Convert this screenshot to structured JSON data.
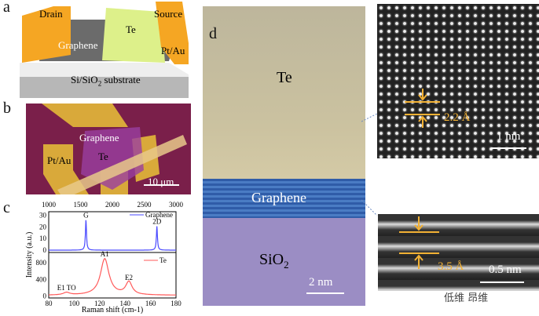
{
  "panels": {
    "a": "a",
    "b": "b",
    "c": "c",
    "d": "d"
  },
  "device": {
    "drain": "Drain",
    "source": "Source",
    "graphene": "Graphene",
    "te": "Te",
    "contact": "Pt/Au",
    "substrate": "Si/SiO",
    "substrate_sub": "2",
    "substrate_end": " substrate"
  },
  "micrograph": {
    "graphene": "Graphene",
    "te": "Te",
    "contact": "Pt/Au",
    "scale": "10 μm"
  },
  "tem": {
    "te": "Te",
    "graphene": "Graphene",
    "sio2": "SiO",
    "sio2_sub": "2",
    "scale": "2 nm"
  },
  "inset_top": {
    "spacing": "2.2 Å",
    "scale": "1 nm"
  },
  "inset_bottom": {
    "spacing": "3.5 Å",
    "scale": "0.5 nm"
  },
  "watermark": "低维 昂维",
  "colors": {
    "graphene": "#4a4aff",
    "te": "#ff5a5a",
    "accent": "#f2b134",
    "te_region": "#c9c09e",
    "graphene_region": "#3d6db5",
    "sio2_region": "#9b8dc4"
  },
  "chart_data": {
    "type": "line",
    "ylabel": "Intensity (a.u.)",
    "xlabel": "Raman shift (cm",
    "xlabel_sup": "-1",
    "xlabel_end": ")",
    "top": {
      "series": "Graphene",
      "xlim": [
        1000,
        3000
      ],
      "ylim": [
        -2,
        33
      ],
      "xticks": [
        "1000",
        "1500",
        "2000",
        "2500",
        "3000"
      ],
      "yticks": [
        "0",
        "10",
        "20",
        "30"
      ],
      "peaks": [
        {
          "label": "G",
          "x": 1585,
          "y": 26
        },
        {
          "label": "2D",
          "x": 2700,
          "y": 20.5
        }
      ]
    },
    "bottom": {
      "series": "Te",
      "xlim": [
        80,
        180
      ],
      "ylim": [
        -50,
        1050
      ],
      "xticks": [
        "80",
        "100",
        "120",
        "140",
        "160",
        "180"
      ],
      "yticks": [
        "0",
        "400",
        "800"
      ],
      "peaks": [
        {
          "label": "E1 TO",
          "x": 94,
          "y": 60
        },
        {
          "label": "A1",
          "x": 124,
          "y": 880
        },
        {
          "label": "E2",
          "x": 143,
          "y": 310
        }
      ]
    }
  }
}
